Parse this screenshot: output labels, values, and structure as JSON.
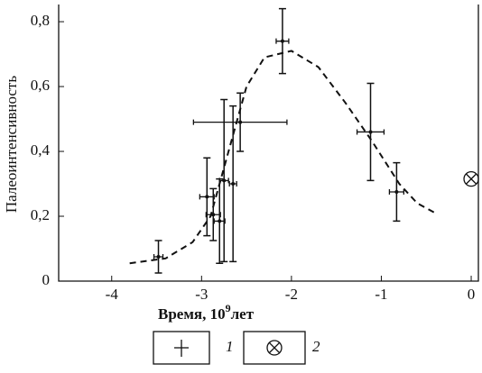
{
  "chart_data": {
    "type": "scatter",
    "ylabel": "Палеоинтенсивность",
    "xlabel": {
      "text": "Время, 10",
      "power": "9",
      "unit": "лет"
    },
    "xlim": [
      -4.59,
      0.08
    ],
    "xticks": [
      -4,
      -3,
      -2,
      -1,
      0
    ],
    "ylim": [
      0,
      0.853
    ],
    "yticks": [
      0,
      {
        "value": 0.2,
        "label": "0,2"
      },
      {
        "value": 0.4,
        "label": "0,4"
      },
      {
        "value": 0.6,
        "label": "0,6"
      },
      {
        "value": 0.8,
        "label": "0,8"
      }
    ],
    "color": "#111111",
    "series": [
      {
        "name": "1",
        "x": [
          -3.48,
          -2.94,
          -2.87,
          -2.8,
          -2.75,
          -2.65,
          -2.57,
          -2.1,
          -1.12,
          -0.83
        ],
        "values": [
          0.075,
          0.26,
          0.205,
          0.185,
          0.31,
          0.3,
          0.49,
          0.74,
          0.46,
          0.275
        ],
        "xerr": [
          0.05,
          0.08,
          0.08,
          0.06,
          0.05,
          0.04,
          0.52,
          0.07,
          0.15,
          0.08
        ],
        "yerr": [
          0.05,
          0.12,
          0.08,
          0.13,
          0.25,
          0.24,
          0.09,
          0.1,
          0.15,
          0.09
        ]
      },
      {
        "name": "2",
        "x": [
          0
        ],
        "values": [
          0.315
        ]
      }
    ],
    "curve": {
      "x": [
        -3.8,
        -3.4,
        -3.1,
        -2.9,
        -2.7,
        -2.5,
        -2.3,
        -2.0,
        -1.7,
        -1.4,
        -1.1,
        -0.8,
        -0.6,
        -0.4
      ],
      "values": [
        0.055,
        0.07,
        0.12,
        0.2,
        0.4,
        0.6,
        0.69,
        0.71,
        0.66,
        0.55,
        0.43,
        0.3,
        0.24,
        0.21
      ]
    }
  }
}
